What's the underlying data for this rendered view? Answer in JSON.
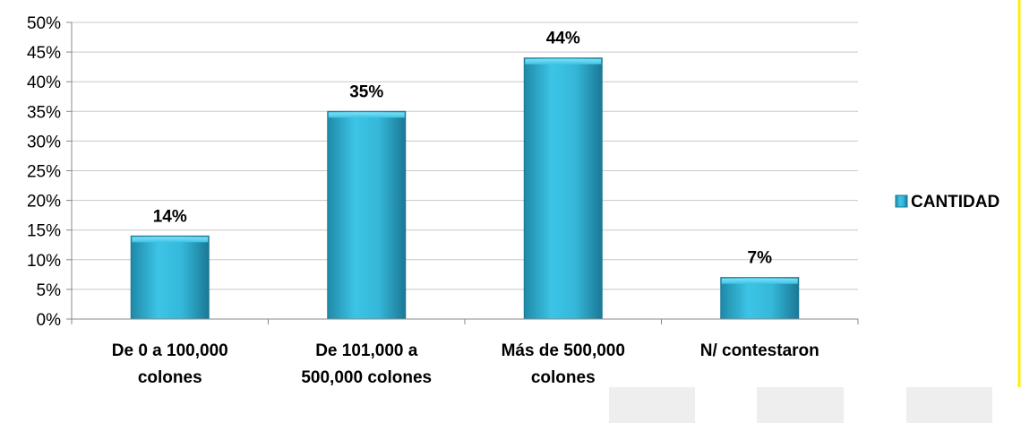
{
  "chart_data": {
    "type": "bar",
    "categories": [
      [
        "De 0 a 100,000",
        "colones"
      ],
      [
        "De 101,000 a",
        "500,000 colones"
      ],
      [
        "Más de 500,000",
        "colones"
      ],
      [
        "N/ contestaron"
      ]
    ],
    "series": [
      {
        "name": "CANTIDAD",
        "values": [
          14,
          35,
          44,
          7
        ],
        "color": "#2aa6c8"
      }
    ],
    "data_labels": [
      "14%",
      "35%",
      "44%",
      "7%"
    ],
    "yticks": [
      "0%",
      "5%",
      "10%",
      "15%",
      "20%",
      "25%",
      "30%",
      "35%",
      "40%",
      "45%",
      "50%"
    ],
    "ylim": [
      0,
      50
    ],
    "grid": true,
    "legend_position": "right"
  }
}
